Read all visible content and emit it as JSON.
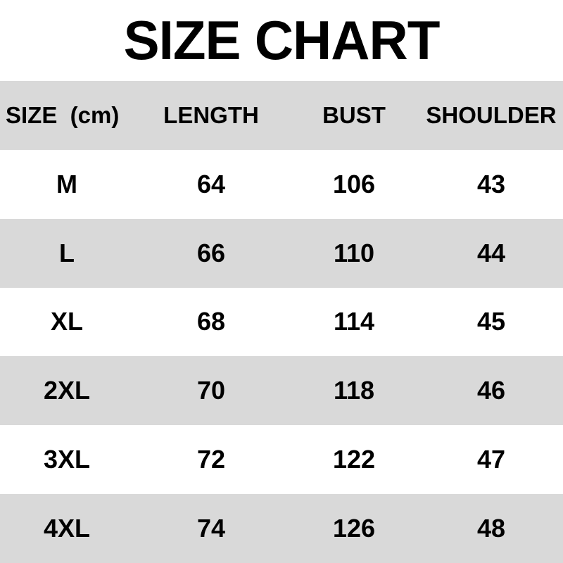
{
  "page_title": "SIZE CHART",
  "colors": {
    "stripe": "#d9d9d9",
    "background": "#ffffff",
    "text": "#000000"
  },
  "chart_data": {
    "type": "table",
    "title": "SIZE CHART",
    "unit_note": "cm",
    "columns": [
      "SIZE  (cm)",
      "LENGTH",
      "BUST",
      "SHOULDER"
    ],
    "rows": [
      [
        "M",
        "64",
        "106",
        "43"
      ],
      [
        "L",
        "66",
        "110",
        "44"
      ],
      [
        "XL",
        "68",
        "114",
        "45"
      ],
      [
        "2XL",
        "70",
        "118",
        "46"
      ],
      [
        "3XL",
        "72",
        "122",
        "47"
      ],
      [
        "4XL",
        "74",
        "126",
        "48"
      ]
    ],
    "layout": {
      "stripe_pattern": "header and even data rows (L, 2XL, 4XL) on gray #d9d9d9, others white",
      "grid": "off",
      "borders": "none"
    }
  }
}
